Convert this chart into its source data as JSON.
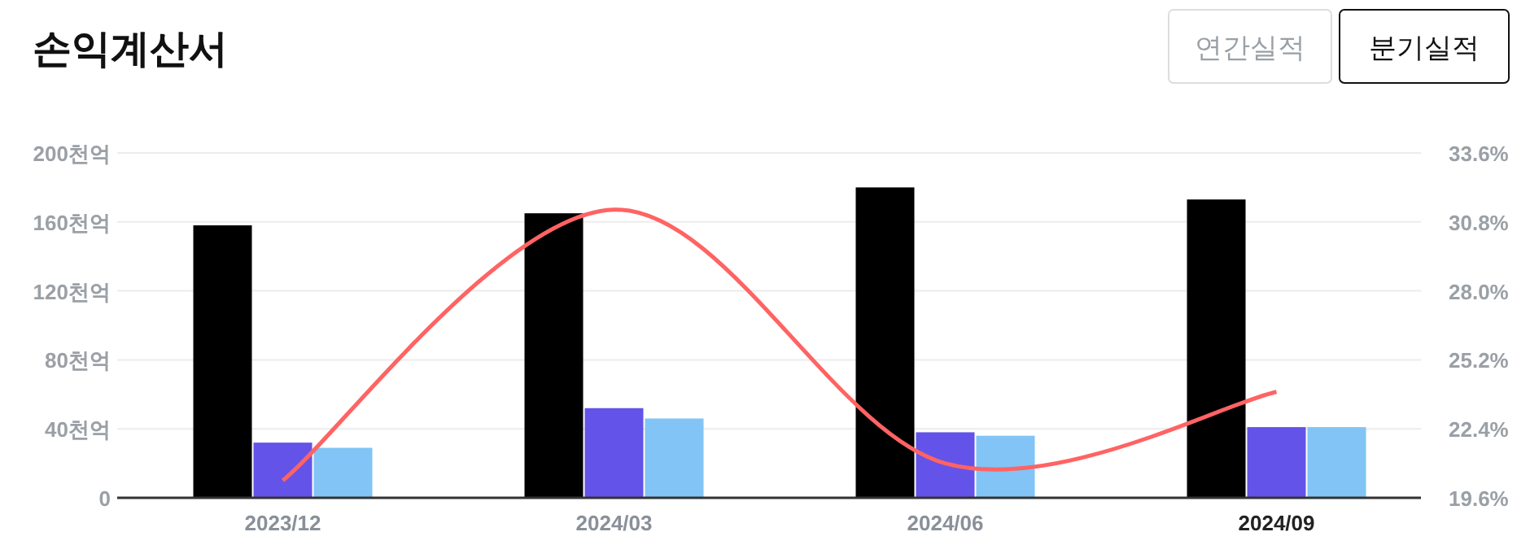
{
  "chart_data": {
    "type": "bar",
    "title": "손익계산서",
    "annotations": [
      "연간실적",
      "분기실적"
    ],
    "categories": [
      "2023/12",
      "2024/03",
      "2024/06",
      "2024/09"
    ],
    "series": [
      {
        "color": "#000000",
        "values": [
          158,
          165,
          180,
          173
        ]
      },
      {
        "color": "#6453e8",
        "values": [
          32,
          52,
          38,
          41
        ]
      },
      {
        "color": "#82c4f5",
        "values": [
          29,
          46,
          36,
          41
        ]
      },
      {
        "type": "line",
        "axis": "y2",
        "color": "#ff6363",
        "values": [
          20.3,
          31.3,
          21.0,
          23.9
        ]
      }
    ],
    "ylim": [
      0,
      200
    ],
    "yticks": [
      0,
      {
        "value": 40,
        "label": "40천억"
      },
      {
        "value": 80,
        "label": "80천억"
      },
      {
        "value": 120,
        "label": "120천억"
      },
      {
        "value": 160,
        "label": "160천억"
      },
      {
        "value": 200,
        "label": "200천억"
      }
    ],
    "y2lim": [
      19.6,
      33.6
    ],
    "y2ticks": [
      {
        "value": 19.6,
        "label": "19.6%"
      },
      {
        "value": 22.4,
        "label": "22.4%"
      },
      {
        "value": 25.2,
        "label": "25.2%"
      },
      {
        "value": 28.0,
        "label": "28.0%"
      },
      {
        "value": 30.8,
        "label": "30.8%"
      },
      {
        "value": 33.6,
        "label": "33.6%"
      }
    ],
    "grid": "y",
    "marker": "none",
    "line_style": "solid"
  }
}
